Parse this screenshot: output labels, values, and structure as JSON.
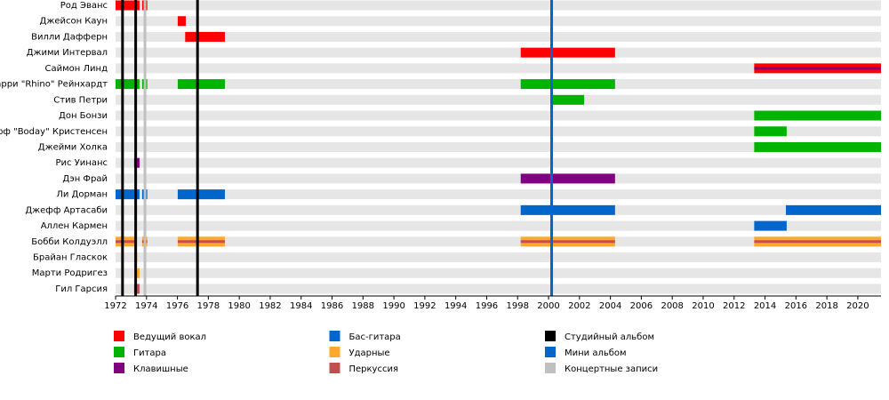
{
  "chart_data": {
    "type": "timeline",
    "xlim": [
      1972,
      2021.5
    ],
    "xticks": [
      1972,
      1974,
      1976,
      1978,
      1980,
      1982,
      1984,
      1986,
      1988,
      1990,
      1992,
      1994,
      1996,
      1998,
      2000,
      2002,
      2004,
      2006,
      2008,
      2010,
      2012,
      2014,
      2016,
      2018,
      2020
    ],
    "roles": [
      {
        "name": "Ведущий вокал",
        "color": "#ff0000"
      },
      {
        "name": "Гитара",
        "color": "#00b300"
      },
      {
        "name": "Клавишные",
        "color": "#800080"
      },
      {
        "name": "Бас-гитара",
        "color": "#0066cc"
      },
      {
        "name": "Ударные",
        "color": "#ffa830"
      },
      {
        "name": "Перкуссия",
        "color": "#c05050"
      }
    ],
    "event_types": [
      {
        "name": "Студийный альбом",
        "color": "#000000"
      },
      {
        "name": "Мини альбом",
        "color": "#0066cc"
      },
      {
        "name": "Концертные записи",
        "color": "#c0c0c0"
      }
    ],
    "events": [
      {
        "type": "Студийный альбом",
        "x": 1972.45
      },
      {
        "type": "Студийный альбом",
        "x": 1973.3
      },
      {
        "type": "Студийный альбом",
        "x": 1977.3
      },
      {
        "type": "Мини альбом",
        "x": 2000.2
      },
      {
        "type": "Концертные записи",
        "x": 1973.9
      }
    ],
    "members": [
      {
        "name": "Род Эванс",
        "segments": [
          {
            "role": "Ведущий вокал",
            "start": 1972,
            "end": 1973.55
          },
          {
            "role": "Ведущий вокал",
            "start": 1973.72,
            "end": 1974.05
          }
        ]
      },
      {
        "name": "Джейсон Каун",
        "segments": [
          {
            "role": "Ведущий вокал",
            "start": 1976.02,
            "end": 1976.54
          }
        ]
      },
      {
        "name": "Вилли Дафферн",
        "segments": [
          {
            "role": "Ведущий вокал",
            "start": 1976.5,
            "end": 1979.07
          }
        ]
      },
      {
        "name": "Джими Интервал",
        "segments": [
          {
            "role": "Ведущий вокал",
            "start": 1998.2,
            "end": 2004.3
          }
        ]
      },
      {
        "name": "Саймон Линд",
        "segments": [
          {
            "role": "Ведущий вокал",
            "start": 2013.3,
            "end": 2021.5
          },
          {
            "role": "Клавишные",
            "start": 2013.3,
            "end": 2021.5
          }
        ]
      },
      {
        "name": "Ларри \"Rhino\" Рейнхардт",
        "segments": [
          {
            "role": "Гитара",
            "start": 1972,
            "end": 1973.55
          },
          {
            "role": "Гитара",
            "start": 1973.72,
            "end": 1974.05
          },
          {
            "role": "Гитара",
            "start": 1976.02,
            "end": 1979.07
          },
          {
            "role": "Гитара",
            "start": 1998.2,
            "end": 2004.3
          }
        ]
      },
      {
        "name": "Стив Петри",
        "segments": [
          {
            "role": "Гитара",
            "start": 2000.2,
            "end": 2002.3
          }
        ]
      },
      {
        "name": "Дон Бонзи",
        "segments": [
          {
            "role": "Гитара",
            "start": 2013.3,
            "end": 2021.5
          }
        ]
      },
      {
        "name": "Джефф \"Boday\" Кристенсен",
        "segments": [
          {
            "role": "Гитара",
            "start": 2013.3,
            "end": 2015.4
          }
        ]
      },
      {
        "name": "Джейми Холка",
        "segments": [
          {
            "role": "Гитара",
            "start": 2013.3,
            "end": 2021.5
          }
        ]
      },
      {
        "name": "Рис Уинанс",
        "segments": [
          {
            "role": "Клавишные",
            "start": 1973.2,
            "end": 1973.55
          }
        ]
      },
      {
        "name": "Дэн Фрай",
        "segments": [
          {
            "role": "Клавишные",
            "start": 1998.2,
            "end": 2004.3
          }
        ]
      },
      {
        "name": "Ли Дорман",
        "segments": [
          {
            "role": "Бас-гитара",
            "start": 1972,
            "end": 1973.55
          },
          {
            "role": "Бас-гитара",
            "start": 1973.72,
            "end": 1974.05
          },
          {
            "role": "Бас-гитара",
            "start": 1976.02,
            "end": 1979.07
          }
        ]
      },
      {
        "name": "Джефф Артасаби",
        "segments": [
          {
            "role": "Бас-гитара",
            "start": 1998.2,
            "end": 2004.3
          },
          {
            "role": "Бас-гитара",
            "start": 2015.35,
            "end": 2021.5
          }
        ]
      },
      {
        "name": "Аллен Кармен",
        "segments": [
          {
            "role": "Бас-гитара",
            "start": 2013.3,
            "end": 2015.4
          }
        ]
      },
      {
        "name": "Бобби Колдуэлл",
        "segments": [
          {
            "role": "Ударные",
            "start": 1972,
            "end": 1973.25
          },
          {
            "role": "Перкуссия",
            "start": 1972,
            "end": 1973.25
          },
          {
            "role": "Ударные",
            "start": 1973.72,
            "end": 1974.05
          },
          {
            "role": "Перкуссия",
            "start": 1973.72,
            "end": 1974.05
          },
          {
            "role": "Ударные",
            "start": 1976.02,
            "end": 1979.07
          },
          {
            "role": "Перкуссия",
            "start": 1976.02,
            "end": 1979.07
          },
          {
            "role": "Ударные",
            "start": 1998.2,
            "end": 2004.3
          },
          {
            "role": "Перкуссия",
            "start": 1998.2,
            "end": 2004.3
          },
          {
            "role": "Ударные",
            "start": 2013.3,
            "end": 2021.5
          },
          {
            "role": "Перкуссия",
            "start": 2013.3,
            "end": 2021.5
          }
        ]
      },
      {
        "name": "Брайан Гласкок",
        "segments": [
          {
            "role": "Ударные",
            "start": 1973.2,
            "end": 1973.4
          }
        ]
      },
      {
        "name": "Марти Родригез",
        "segments": [
          {
            "role": "Ударные",
            "start": 1973.3,
            "end": 1973.55
          }
        ]
      },
      {
        "name": "Гил Гарсия",
        "segments": [
          {
            "role": "Перкуссия",
            "start": 1973.2,
            "end": 1973.55
          }
        ]
      }
    ]
  }
}
